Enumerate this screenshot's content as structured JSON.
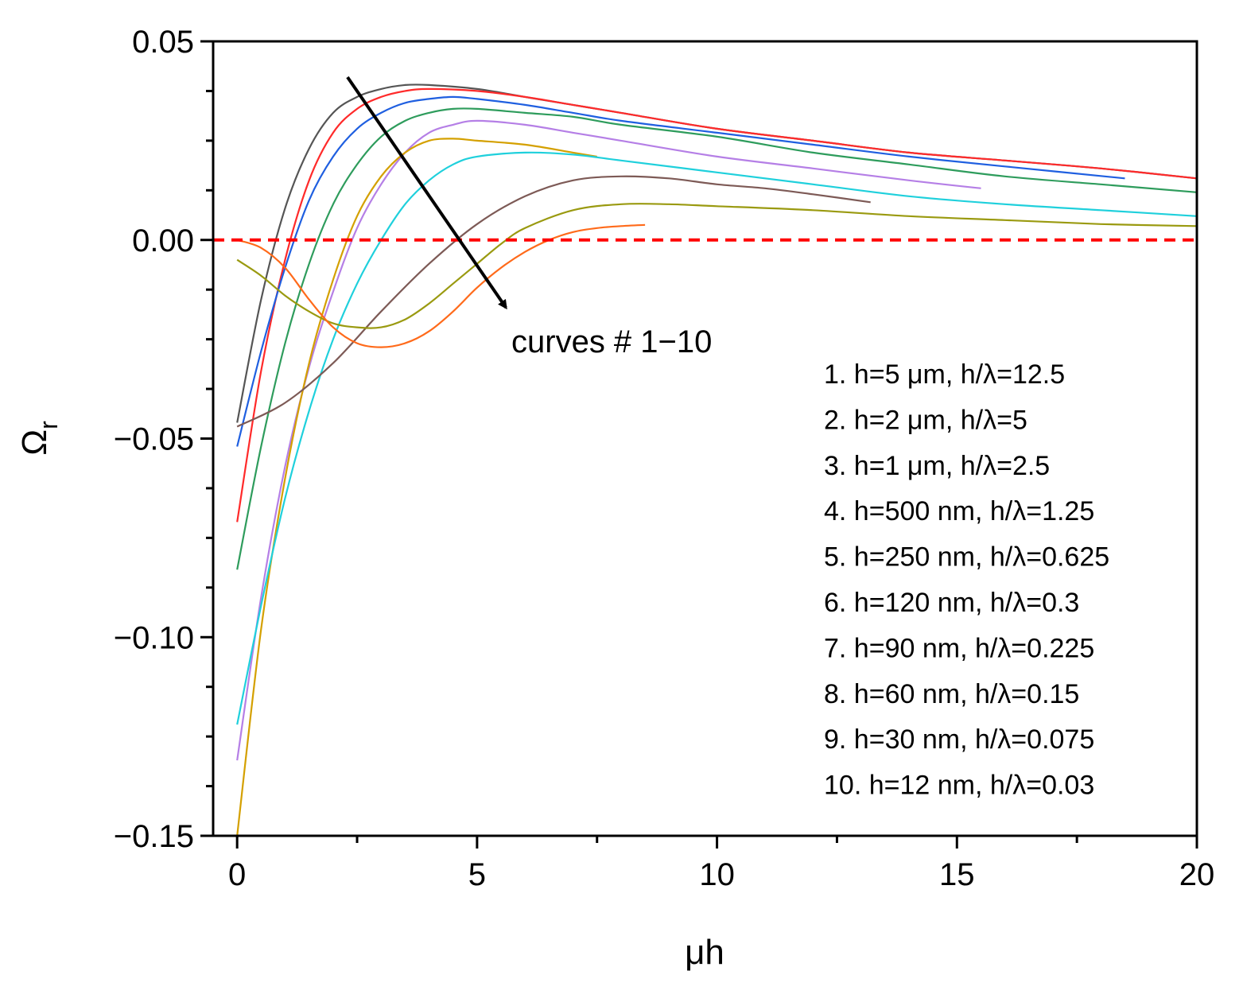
{
  "chart_data": {
    "type": "line",
    "title": "",
    "xlabel": "μh",
    "ylabel": "Ω",
    "ylabel_subscript": "r",
    "xlim": [
      -0.5,
      20
    ],
    "ylim": [
      -0.15,
      0.05
    ],
    "xticks": [
      0,
      5,
      10,
      15,
      20
    ],
    "xtick_labels": [
      "0",
      "5",
      "10",
      "15",
      "20"
    ],
    "yticks": [
      -0.15,
      -0.1,
      -0.05,
      0.0,
      0.05
    ],
    "ytick_labels": [
      "−0.15",
      "−0.10",
      "−0.05",
      "0.00",
      "0.05"
    ],
    "grid": false,
    "reference_line": {
      "y": 0.0,
      "color": "#ff0000",
      "style": "dashed"
    },
    "annotation": {
      "text": "curves # 1−10",
      "arrow_from": [
        2.3,
        0.041
      ],
      "arrow_to": [
        5.6,
        -0.017
      ]
    },
    "legend_position": "right",
    "series": [
      {
        "name": "1. h=5 μm, h/λ=12.5",
        "color": "#555555",
        "x": [
          0,
          0.5,
          1,
          1.5,
          2,
          2.5,
          3,
          3.5,
          4,
          5,
          6,
          7,
          8,
          10,
          12,
          14,
          16,
          18,
          20
        ],
        "y": [
          -0.046,
          -0.015,
          0.008,
          0.023,
          0.032,
          0.036,
          0.038,
          0.039,
          0.039,
          0.038,
          0.036,
          0.034,
          0.032,
          0.028,
          0.025,
          0.022,
          0.02,
          0.018,
          0.0155
        ]
      },
      {
        "name": "2. h=2 μm, h/λ=5",
        "color": "#ff2a2a",
        "x": [
          0,
          0.5,
          1,
          1.5,
          2,
          2.5,
          3,
          3.5,
          4,
          5,
          6,
          7,
          8,
          10,
          12,
          14,
          16,
          18,
          20
        ],
        "y": [
          -0.071,
          -0.033,
          -0.005,
          0.015,
          0.027,
          0.033,
          0.036,
          0.0375,
          0.038,
          0.0375,
          0.036,
          0.034,
          0.032,
          0.028,
          0.025,
          0.022,
          0.02,
          0.018,
          0.0155
        ]
      },
      {
        "name": "3. h=1 μm, h/λ=2.5",
        "color": "#1f5fe0",
        "x": [
          0,
          0.5,
          1,
          1.5,
          2,
          2.5,
          3,
          3.5,
          4,
          4.5,
          5,
          6,
          7,
          8,
          10,
          12,
          14,
          16,
          18.5
        ],
        "y": [
          -0.052,
          -0.028,
          -0.007,
          0.01,
          0.021,
          0.028,
          0.032,
          0.0345,
          0.0355,
          0.036,
          0.0355,
          0.034,
          0.032,
          0.03,
          0.027,
          0.024,
          0.021,
          0.0185,
          0.0155
        ]
      },
      {
        "name": "4. h=500 nm, h/λ=1.25",
        "color": "#2e9c5c",
        "x": [
          0,
          0.5,
          1,
          1.5,
          2,
          2.5,
          3,
          3.5,
          4,
          4.5,
          5,
          6,
          7,
          8,
          10,
          12,
          14,
          16,
          18,
          20
        ],
        "y": [
          -0.083,
          -0.052,
          -0.026,
          -0.006,
          0.009,
          0.019,
          0.026,
          0.03,
          0.032,
          0.033,
          0.033,
          0.032,
          0.031,
          0.029,
          0.026,
          0.022,
          0.019,
          0.016,
          0.014,
          0.012
        ]
      },
      {
        "name": "5. h=250 nm, h/λ=0.625",
        "color": "#b57fe6",
        "x": [
          0,
          0.5,
          1,
          1.5,
          2,
          2.5,
          3,
          3.5,
          4,
          4.5,
          5,
          6,
          7,
          8,
          10,
          12,
          14,
          15.5
        ],
        "y": [
          -0.131,
          -0.09,
          -0.057,
          -0.032,
          -0.013,
          0.003,
          0.014,
          0.022,
          0.027,
          0.029,
          0.03,
          0.029,
          0.027,
          0.025,
          0.021,
          0.018,
          0.015,
          0.013
        ]
      },
      {
        "name": "6. h=120 nm, h/λ=0.3",
        "color": "#d4a000",
        "x": [
          0,
          0.5,
          1,
          1.5,
          2,
          2.5,
          3,
          3.5,
          4,
          4.5,
          5,
          6,
          7,
          7.5
        ],
        "y": [
          -0.15,
          -0.098,
          -0.06,
          -0.031,
          -0.01,
          0.006,
          0.016,
          0.022,
          0.025,
          0.0255,
          0.025,
          0.024,
          0.022,
          0.021
        ]
      },
      {
        "name": "7. h=90 nm, h/λ=0.225",
        "color": "#1fd0dc",
        "x": [
          0,
          0.5,
          1,
          1.5,
          2,
          2.5,
          3,
          3.5,
          4,
          4.5,
          5,
          6,
          7,
          8,
          10,
          12,
          14,
          16,
          18,
          20
        ],
        "y": [
          -0.122,
          -0.092,
          -0.065,
          -0.043,
          -0.025,
          -0.011,
          0.0,
          0.009,
          0.015,
          0.019,
          0.021,
          0.022,
          0.0215,
          0.02,
          0.017,
          0.014,
          0.011,
          0.009,
          0.0075,
          0.006
        ]
      },
      {
        "name": "8. h=60 nm, h/λ=0.15",
        "color": "#7d5a56",
        "x": [
          0,
          1,
          2,
          3,
          4,
          5,
          6,
          7,
          8,
          9,
          10,
          11,
          12,
          13.2
        ],
        "y": [
          -0.047,
          -0.041,
          -0.031,
          -0.018,
          -0.006,
          0.004,
          0.011,
          0.015,
          0.016,
          0.0155,
          0.014,
          0.013,
          0.0115,
          0.0095
        ]
      },
      {
        "name": "9. h=30 nm, h/λ=0.075",
        "color": "#9a9a10",
        "x": [
          0,
          0.5,
          1,
          1.5,
          2,
          2.5,
          3,
          3.5,
          4,
          4.5,
          5,
          5.5,
          6,
          7,
          8,
          9,
          10,
          12,
          14,
          16,
          18,
          20
        ],
        "y": [
          -0.005,
          -0.009,
          -0.014,
          -0.018,
          -0.021,
          -0.022,
          -0.022,
          -0.02,
          -0.016,
          -0.011,
          -0.006,
          -0.001,
          0.003,
          0.0075,
          0.009,
          0.009,
          0.0085,
          0.0075,
          0.006,
          0.005,
          0.004,
          0.0035
        ]
      },
      {
        "name": "10. h=12 nm, h/λ=0.03",
        "color": "#ff6a1a",
        "x": [
          0,
          0.5,
          1,
          1.5,
          2,
          2.5,
          3,
          3.5,
          4,
          4.5,
          5,
          5.5,
          6,
          6.5,
          7,
          7.5,
          8,
          8.5
        ],
        "y": [
          0.0,
          -0.002,
          -0.007,
          -0.015,
          -0.022,
          -0.026,
          -0.027,
          -0.026,
          -0.023,
          -0.018,
          -0.012,
          -0.007,
          -0.003,
          0.0,
          0.002,
          0.003,
          0.0035,
          0.0038
        ]
      }
    ]
  }
}
